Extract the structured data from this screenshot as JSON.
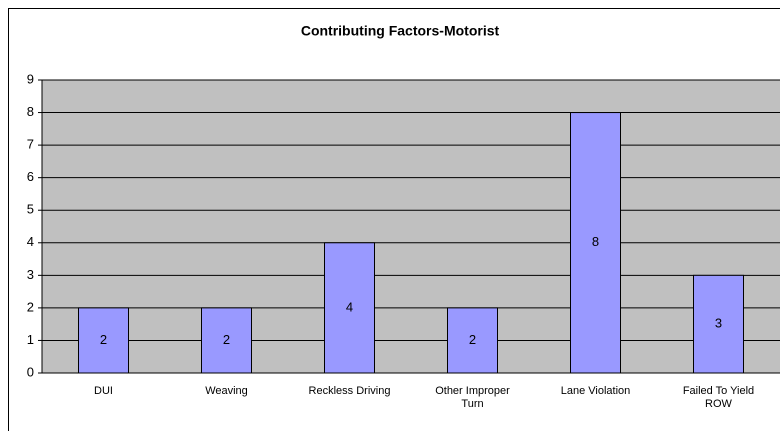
{
  "chart_data": {
    "type": "bar",
    "title": "Contributing Factors-Motorist",
    "categories": [
      "DUI",
      "Weaving",
      "Reckless Driving",
      "Other Improper Turn",
      "Lane Violation",
      "Failed To Yield ROW"
    ],
    "values": [
      2,
      2,
      4,
      2,
      8,
      3
    ],
    "color": "#9999ff",
    "plot_background": "#c0c0c0",
    "ylim": [
      0,
      9
    ],
    "yticks": [
      0,
      1,
      2,
      3,
      4,
      5,
      6,
      7,
      8,
      9
    ],
    "grid": true
  }
}
